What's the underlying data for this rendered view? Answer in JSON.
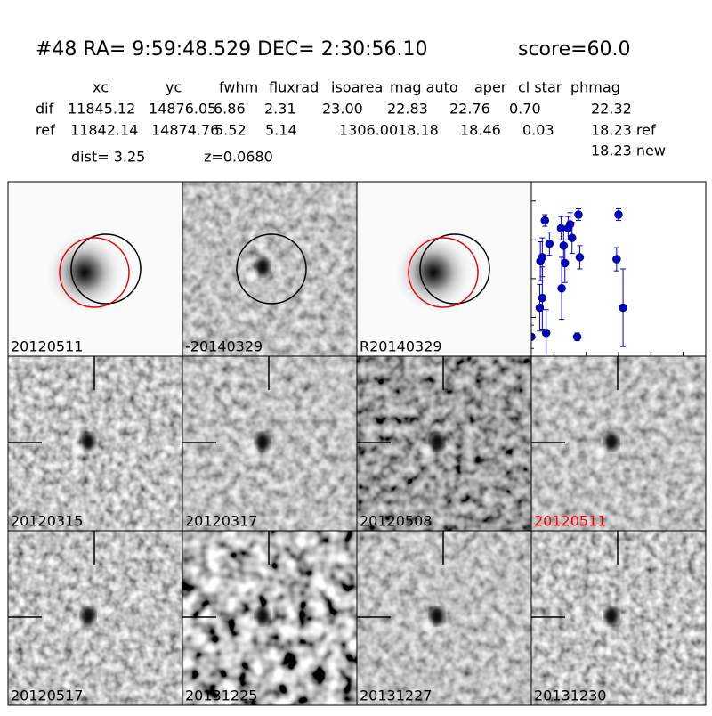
{
  "header": {
    "title": "#48   RA= 9:59:48.529 DEC= 2:30:56.10",
    "score": "score=60.0"
  },
  "table": {
    "columns": [
      "xc",
      "yc",
      "fwhm",
      "fluxrad",
      "isoarea",
      "mag auto",
      "aper",
      "cl star",
      "phmag"
    ],
    "rows": [
      [
        "dif",
        "11845.12",
        "14876.05",
        "6.86",
        "2.31",
        "23.00",
        "22.83",
        "22.76",
        "0.70",
        "22.32"
      ],
      [
        "ref",
        "11842.14",
        "14874.76",
        "5.52",
        "5.14",
        "1306.00",
        "18.18",
        "18.46",
        "0.03",
        "18.23 ref"
      ]
    ],
    "extra": "18.23 new"
  },
  "dist": "dist=  3.25",
  "z": "z=0.0680",
  "panels": [
    {
      "label": "20120511"
    },
    {
      "label": "-20140329"
    },
    {
      "label": "R20140329"
    },
    {
      "label": "20120315"
    },
    {
      "label": "20120317"
    },
    {
      "label": "20120508"
    },
    {
      "label": "20120511",
      "label_color": "red"
    },
    {
      "label": "20120517"
    },
    {
      "label": "20131225"
    },
    {
      "label": "20131227"
    },
    {
      "label": "20131230"
    }
  ],
  "chart_data": {
    "type": "scatter",
    "color": "#0000cc",
    "x": [
      -135,
      -122,
      -121,
      -118,
      -118,
      -112,
      -114,
      -107,
      -89,
      -88,
      -85,
      -83,
      -78,
      -75,
      -72,
      -64,
      -62,
      -60,
      -3,
      0,
      7
    ],
    "values": [
      25.5,
      24.75,
      23.55,
      23.45,
      24.5,
      25.4,
      22.5,
      23.1,
      22.7,
      24.25,
      23.15,
      23.6,
      22.7,
      22.6,
      22.95,
      25.5,
      22.35,
      23.45,
      23.5,
      22.35,
      24.75
    ],
    "errors": [
      0.3,
      0.6,
      0.5,
      0.5,
      0.8,
      0.6,
      0.15,
      0.3,
      0.3,
      0.8,
      0.4,
      0.5,
      0.3,
      0.3,
      0.4,
      0.1,
      0.15,
      0.3,
      0.3,
      0.15,
      1.0
    ],
    "xlim": [
      -135,
      135
    ],
    "ylim": [
      26,
      21.5
    ],
    "xticks": [
      -100,
      -50,
      0,
      50,
      100
    ],
    "yticks": [
      22,
      23,
      24,
      25,
      26
    ]
  }
}
